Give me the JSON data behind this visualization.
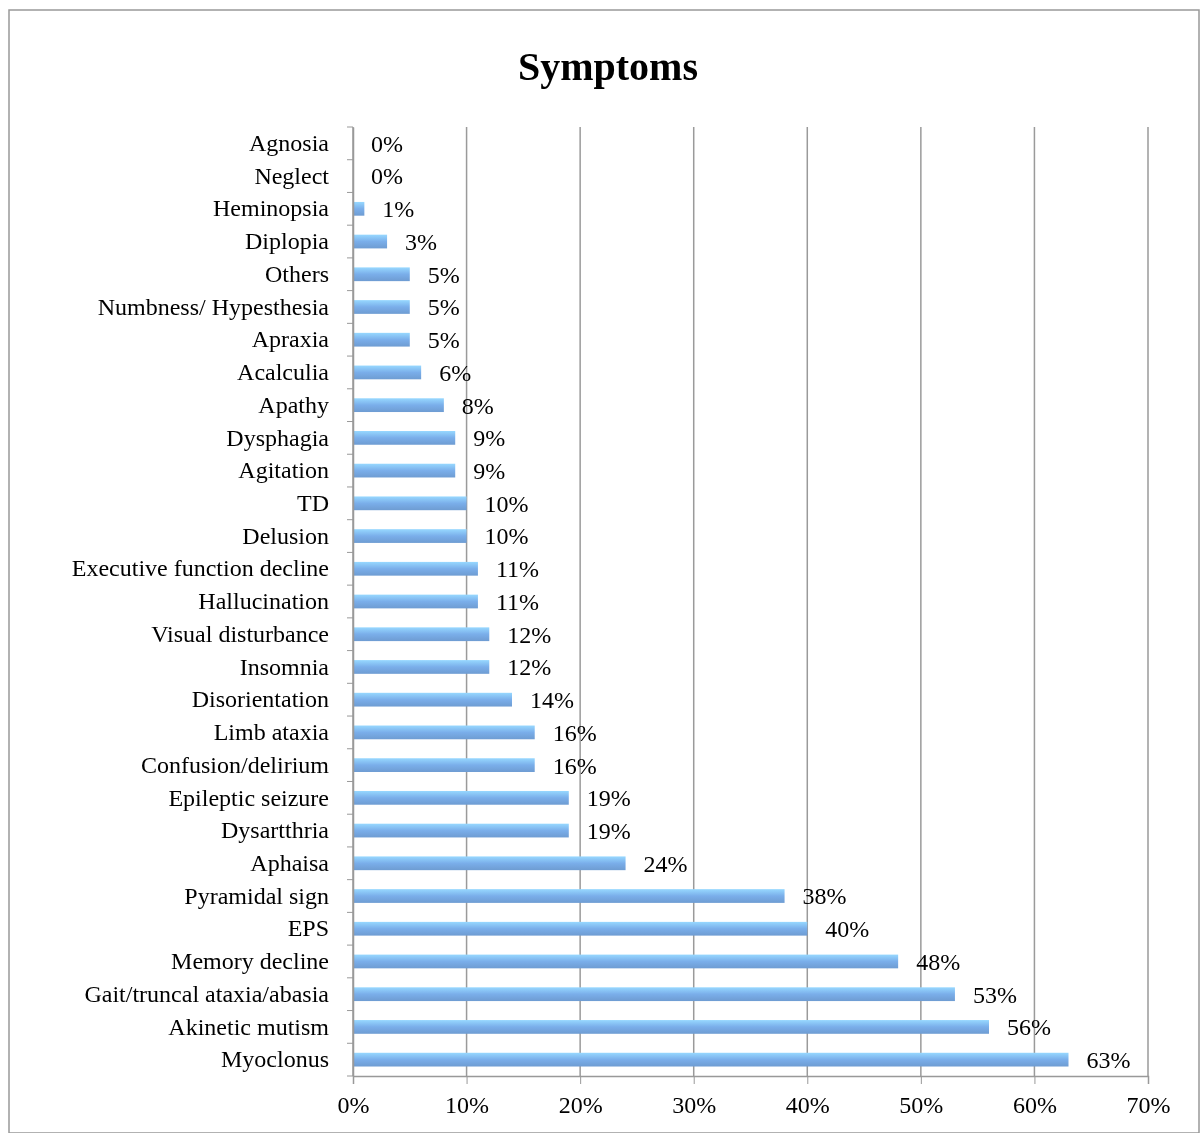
{
  "chart_data": {
    "type": "bar",
    "orientation": "horizontal",
    "title": "Symptoms",
    "categories": [
      "Agnosia",
      "Neglect",
      "Heminopsia",
      "Diplopia",
      "Others",
      "Numbness/ Hypesthesia",
      "Apraxia",
      "Acalculia",
      "Apathy",
      "Dysphagia",
      "Agitation",
      "TD",
      "Delusion",
      "Executive function decline",
      "Hallucination",
      "Visual disturbance",
      "Insomnia",
      "Disorientation",
      "Limb ataxia",
      "Confusion/delirium",
      "Epileptic seizure",
      "Dysartthria",
      "Aphaisa",
      "Pyramidal sign",
      "EPS",
      "Memory decline",
      "Gait/truncal ataxia/abasia",
      "Akinetic mutism",
      "Myoclonus"
    ],
    "values": [
      0,
      0,
      1,
      3,
      5,
      5,
      5,
      6,
      8,
      9,
      9,
      10,
      10,
      11,
      11,
      12,
      12,
      14,
      16,
      16,
      19,
      19,
      24,
      38,
      40,
      48,
      53,
      56,
      63
    ],
    "value_labels": [
      "0%",
      "0%",
      "1%",
      "3%",
      "5%",
      "5%",
      "5%",
      "6%",
      "8%",
      "9%",
      "9%",
      "10%",
      "10%",
      "11%",
      "11%",
      "12%",
      "12%",
      "14%",
      "16%",
      "16%",
      "19%",
      "19%",
      "24%",
      "38%",
      "40%",
      "48%",
      "53%",
      "56%",
      "63%"
    ],
    "color": "#7aaeea",
    "xlim": [
      0,
      70
    ],
    "xticks": [
      {
        "value": 0,
        "label": "0%"
      },
      {
        "value": 10,
        "label": "10%"
      },
      {
        "value": 20,
        "label": "20%"
      },
      {
        "value": 30,
        "label": "30%"
      },
      {
        "value": 40,
        "label": "40%"
      },
      {
        "value": 50,
        "label": "50%"
      },
      {
        "value": 60,
        "label": "60%"
      },
      {
        "value": 70,
        "label": "70%"
      }
    ],
    "grid": "x"
  }
}
